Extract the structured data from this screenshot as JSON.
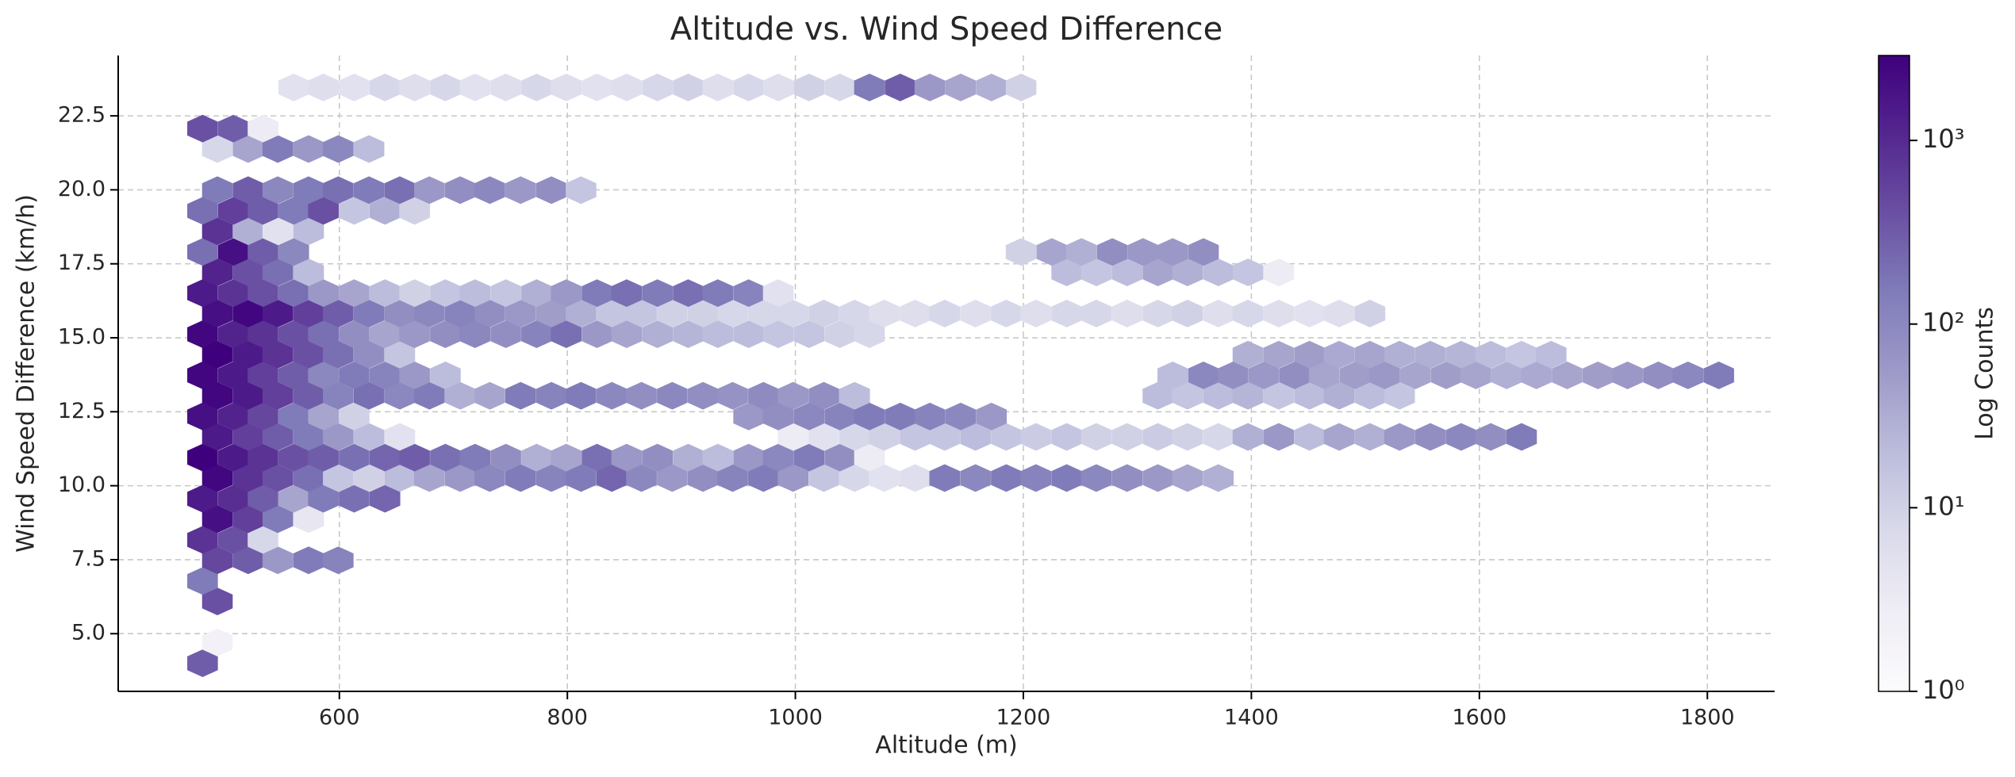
{
  "chart_data": {
    "type": "hexbin",
    "title": "Altitude vs. Wind Speed Difference",
    "xlabel": "Altitude (m)",
    "ylabel": "Wind Speed Difference (km/h)",
    "clabel": "Log Counts",
    "cmap": "Purples",
    "color_scale": "log",
    "grid": true,
    "xlim": [
      406,
      1859
    ],
    "ylim": [
      3.05,
      24.54
    ],
    "clim": [
      1,
      2900
    ],
    "xticks": [
      600,
      800,
      1000,
      1200,
      1400,
      1600,
      1800
    ],
    "yticks": [
      {
        "value": 5,
        "label": "5.0"
      },
      7.5,
      {
        "value": 10,
        "label": "10.0"
      },
      12.5,
      {
        "value": 15,
        "label": "15.0"
      },
      17.5,
      {
        "value": 20,
        "label": "20.0"
      },
      22.5
    ],
    "cticks": [
      {
        "value": 1,
        "label": "10⁰"
      },
      {
        "value": 10,
        "label": "10¹"
      },
      {
        "value": 100,
        "label": "10²"
      },
      {
        "value": 1000,
        "label": "10³"
      }
    ],
    "rows": [
      {
        "y": 4.0,
        "x": [
          480
        ],
        "counts": [
          300
        ]
      },
      {
        "y": 4.7,
        "x": [
          493
        ],
        "counts": [
          2
        ]
      },
      {
        "y": 6.09,
        "x": [
          493
        ],
        "counts": [
          400
        ]
      },
      {
        "y": 6.78,
        "x": [
          480
        ],
        "counts": [
          150
        ]
      },
      {
        "y": 7.48,
        "x": [
          493,
          520,
          546,
          573,
          599
        ],
        "counts": [
          500,
          300,
          60,
          150,
          120
        ]
      },
      {
        "y": 8.17,
        "x": [
          480,
          507,
          533
        ],
        "counts": [
          800,
          400,
          8
        ]
      },
      {
        "y": 8.87,
        "x": [
          493,
          520,
          546,
          573
        ],
        "counts": [
          2000,
          600,
          150,
          4
        ]
      },
      {
        "y": 9.56,
        "x": [
          480,
          507,
          533,
          560,
          586,
          613,
          640
        ],
        "counts": [
          1500,
          900,
          300,
          40,
          150,
          200,
          250
        ]
      },
      {
        "y": 10.26,
        "x": [
          493,
          520,
          546,
          573,
          599,
          626,
          653,
          679,
          706,
          732,
          759,
          786,
          812,
          839,
          865,
          892,
          919,
          945,
          972,
          998,
          1025,
          1052,
          1078,
          1105,
          1131,
          1158,
          1185,
          1211,
          1238,
          1264,
          1291,
          1318,
          1344,
          1371
        ],
        "counts": [
          2500,
          800,
          400,
          200,
          15,
          10,
          20,
          40,
          60,
          100,
          150,
          120,
          150,
          250,
          100,
          60,
          80,
          120,
          150,
          60,
          15,
          8,
          5,
          6,
          150,
          100,
          150,
          120,
          150,
          100,
          80,
          60,
          40,
          30
        ]
      },
      {
        "y": 10.95,
        "x": [
          480,
          507,
          533,
          560,
          586,
          613,
          640,
          666,
          693,
          719,
          746,
          773,
          799,
          826,
          852,
          879,
          906,
          932,
          959,
          985,
          1012,
          1039,
          1065
        ],
        "counts": [
          3000,
          1500,
          800,
          400,
          300,
          200,
          250,
          300,
          200,
          150,
          80,
          30,
          40,
          200,
          60,
          80,
          30,
          20,
          60,
          100,
          150,
          80,
          3
        ]
      },
      {
        "y": 11.65,
        "x": [
          493,
          520,
          546,
          573,
          599,
          626,
          653,
          998,
          1025,
          1052,
          1078,
          1105,
          1131,
          1158,
          1185,
          1211,
          1238,
          1264,
          1291,
          1318,
          1344,
          1371,
          1397,
          1424,
          1451,
          1477,
          1504,
          1530,
          1557,
          1584,
          1610,
          1637
        ],
        "counts": [
          1500,
          600,
          300,
          150,
          60,
          20,
          5,
          3,
          5,
          8,
          10,
          15,
          15,
          20,
          15,
          12,
          15,
          10,
          10,
          12,
          10,
          8,
          30,
          60,
          20,
          40,
          30,
          60,
          80,
          100,
          80,
          150
        ]
      },
      {
        "y": 12.34,
        "x": [
          480,
          507,
          533,
          560,
          586,
          613,
          959,
          985,
          1012,
          1039,
          1065,
          1092,
          1118,
          1145,
          1172
        ],
        "counts": [
          2000,
          1200,
          500,
          150,
          40,
          10,
          60,
          80,
          100,
          120,
          150,
          150,
          120,
          100,
          60
        ]
      },
      {
        "y": 13.04,
        "x": [
          493,
          520,
          546,
          573,
          599,
          626,
          653,
          679,
          706,
          732,
          759,
          786,
          812,
          839,
          865,
          892,
          919,
          945,
          972,
          998,
          1025,
          1052,
          1318,
          1344,
          1371,
          1397,
          1424,
          1451,
          1477,
          1504,
          1530
        ],
        "counts": [
          2500,
          1500,
          600,
          300,
          120,
          200,
          100,
          150,
          30,
          40,
          150,
          120,
          150,
          100,
          80,
          100,
          80,
          70,
          90,
          60,
          80,
          20,
          20,
          15,
          20,
          25,
          15,
          20,
          30,
          20,
          15
        ]
      },
      {
        "y": 13.73,
        "x": [
          480,
          507,
          533,
          560,
          586,
          613,
          640,
          666,
          693,
          1331,
          1358,
          1384,
          1411,
          1438,
          1464,
          1491,
          1517,
          1544,
          1571,
          1597,
          1624,
          1650,
          1677,
          1704,
          1730,
          1757,
          1783,
          1810
        ],
        "counts": [
          2500,
          1500,
          600,
          300,
          100,
          150,
          120,
          60,
          20,
          20,
          100,
          80,
          60,
          80,
          40,
          50,
          60,
          40,
          50,
          40,
          30,
          35,
          40,
          50,
          60,
          80,
          100,
          150
        ]
      },
      {
        "y": 14.43,
        "x": [
          493,
          520,
          546,
          573,
          599,
          626,
          653,
          1397,
          1424,
          1451,
          1477,
          1504,
          1530,
          1557,
          1584,
          1610,
          1637,
          1663
        ],
        "counts": [
          3000,
          1500,
          800,
          400,
          200,
          80,
          15,
          30,
          40,
          50,
          35,
          40,
          30,
          30,
          25,
          20,
          15,
          20
        ]
      },
      {
        "y": 15.12,
        "x": [
          480,
          507,
          533,
          560,
          586,
          613,
          640,
          666,
          693,
          719,
          746,
          773,
          799,
          826,
          852,
          879,
          906,
          932,
          959,
          985,
          1012,
          1039,
          1065
        ],
        "counts": [
          2500,
          1200,
          800,
          400,
          200,
          80,
          40,
          60,
          80,
          100,
          80,
          120,
          200,
          60,
          40,
          30,
          25,
          20,
          20,
          15,
          15,
          10,
          8
        ]
      },
      {
        "y": 15.82,
        "x": [
          493,
          520,
          546,
          573,
          599,
          626,
          653,
          679,
          706,
          732,
          759,
          786,
          812,
          839,
          865,
          892,
          919,
          945,
          972,
          998,
          1025,
          1052,
          1078,
          1105,
          1131,
          1158,
          1185,
          1211,
          1238,
          1264,
          1291,
          1318,
          1344,
          1371,
          1397,
          1424,
          1451,
          1477,
          1504
        ],
        "counts": [
          2000,
          2500,
          1500,
          600,
          300,
          150,
          80,
          100,
          120,
          80,
          60,
          50,
          30,
          15,
          15,
          10,
          10,
          8,
          8,
          8,
          10,
          8,
          6,
          6,
          8,
          6,
          8,
          6,
          8,
          8,
          6,
          8,
          10,
          6,
          8,
          6,
          5,
          6,
          10
        ]
      },
      {
        "y": 16.51,
        "x": [
          480,
          507,
          533,
          560,
          586,
          613,
          640,
          666,
          693,
          719,
          746,
          773,
          799,
          826,
          852,
          879,
          906,
          932,
          959,
          985
        ],
        "counts": [
          1500,
          800,
          400,
          200,
          60,
          40,
          20,
          10,
          15,
          20,
          15,
          30,
          60,
          150,
          200,
          150,
          200,
          150,
          120,
          5
        ]
      },
      {
        "y": 17.21,
        "x": [
          493,
          520,
          546,
          573,
          1238,
          1264,
          1291,
          1318,
          1344,
          1371,
          1397,
          1424
        ],
        "counts": [
          1200,
          400,
          200,
          20,
          20,
          15,
          20,
          40,
          30,
          20,
          15,
          3
        ]
      },
      {
        "y": 17.9,
        "x": [
          480,
          507,
          533,
          560,
          1198,
          1225,
          1251,
          1278,
          1305,
          1331,
          1358
        ],
        "counts": [
          200,
          2000,
          300,
          100,
          10,
          40,
          30,
          80,
          60,
          60,
          80
        ]
      },
      {
        "y": 18.6,
        "x": [
          493,
          520,
          546,
          573
        ],
        "counts": [
          800,
          30,
          5,
          20
        ]
      },
      {
        "y": 19.29,
        "x": [
          480,
          507,
          533,
          560,
          586,
          613,
          640,
          666
        ],
        "counts": [
          200,
          600,
          300,
          150,
          400,
          15,
          30,
          10
        ]
      },
      {
        "y": 19.99,
        "x": [
          493,
          520,
          546,
          573,
          599,
          626,
          653,
          679,
          706,
          732,
          759,
          786,
          812
        ],
        "counts": [
          150,
          300,
          100,
          150,
          200,
          150,
          200,
          60,
          80,
          100,
          60,
          80,
          15
        ]
      },
      {
        "y": 21.38,
        "x": [
          493,
          520,
          546,
          573,
          599,
          626
        ],
        "counts": [
          8,
          40,
          150,
          60,
          100,
          20
        ]
      },
      {
        "y": 22.07,
        "x": [
          480,
          507,
          533
        ],
        "counts": [
          400,
          300,
          3
        ]
      },
      {
        "y": 23.46,
        "x": [
          560,
          586,
          613,
          640,
          666,
          693,
          719,
          746,
          773,
          799,
          826,
          852,
          879,
          906,
          932,
          959,
          985,
          1012,
          1039,
          1065,
          1092,
          1118,
          1145,
          1172,
          1198
        ],
        "counts": [
          5,
          6,
          5,
          8,
          6,
          8,
          5,
          6,
          8,
          6,
          5,
          6,
          8,
          10,
          6,
          8,
          6,
          10,
          8,
          150,
          300,
          60,
          40,
          30,
          10
        ]
      }
    ]
  }
}
